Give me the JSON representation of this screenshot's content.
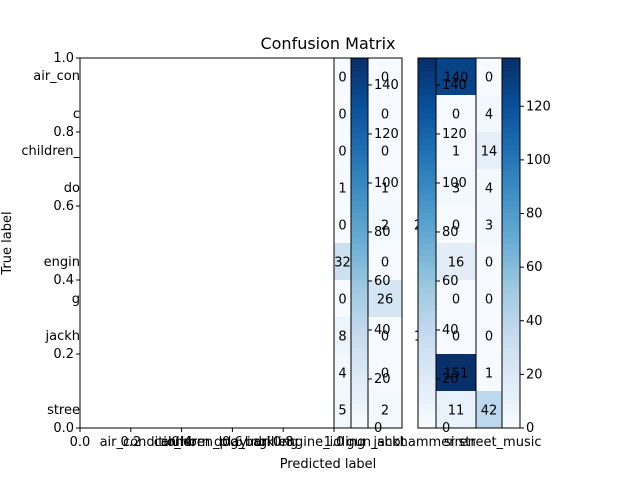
{
  "chart_data": {
    "type": "heatmap",
    "title": "Confusion Matrix",
    "xlabel": "Predicted label",
    "ylabel": "True label",
    "outer_x_ticks": [
      "0.0",
      "0.2",
      "0.4",
      "0.6",
      "0.8",
      "1.0"
    ],
    "outer_y_ticks": [
      "0.0",
      "0.2",
      "0.4",
      "0.6",
      "0.8",
      "1.0"
    ],
    "x_tick_labels": [
      "air_conditioner",
      "car_horn",
      "children_playing",
      "dog_bark",
      "drilling",
      "engine_idling",
      "gun_shot",
      "jackhammer",
      "siren",
      "street_music"
    ],
    "y_tick_labels_visible": [
      "air_con",
      "c",
      "children_",
      "do",
      "engin",
      "g",
      "jackh",
      "stree"
    ],
    "panels": [
      {
        "name": "p1",
        "values": [
          0,
          0,
          0,
          1,
          0,
          32,
          0,
          8,
          4,
          5
        ]
      },
      {
        "name": "p2",
        "values": [
          0,
          0,
          0,
          1,
          2,
          0,
          26,
          0,
          0,
          2
        ]
      },
      {
        "name": "p3",
        "values": [
          140,
          0,
          1,
          3,
          0,
          16,
          0,
          0,
          151,
          11
        ]
      },
      {
        "name": "p4",
        "values": [
          0,
          4,
          14,
          4,
          3,
          0,
          0,
          0,
          1,
          42
        ]
      }
    ],
    "extra_cell_labels": [
      {
        "panel": "p2",
        "value": "2",
        "row": 4,
        "side": "right"
      },
      {
        "panel": "p2",
        "value": "1",
        "row": 7,
        "side": "right"
      }
    ],
    "colorbar_ticks": [
      "0",
      "20",
      "40",
      "60",
      "80",
      "100",
      "120",
      "140"
    ],
    "colorbar_ticks_right": [
      "0",
      "20",
      "40",
      "60",
      "80",
      "100",
      "120"
    ],
    "vmax": 151,
    "colormap": "Blues"
  }
}
